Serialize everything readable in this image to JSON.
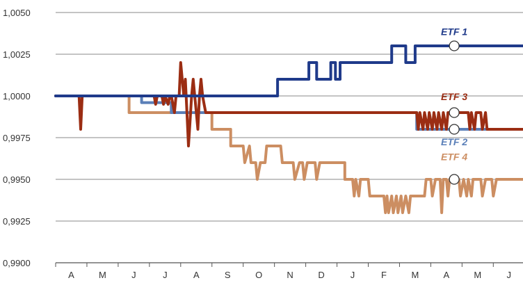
{
  "chart_data": {
    "type": "line",
    "title": "",
    "xlabel": "",
    "ylabel": "",
    "x_ticks": [
      "A",
      "M",
      "J",
      "J",
      "A",
      "S",
      "O",
      "N",
      "D",
      "J",
      "F",
      "M",
      "A",
      "M",
      "J"
    ],
    "y_ticks": [
      "1,0050",
      "1,0025",
      "1,0000",
      "0,9975",
      "0,9950",
      "0,9925",
      "0,9900"
    ],
    "ylim": [
      0.99,
      1.005
    ],
    "xlim": [
      0,
      14.95
    ],
    "grid": true,
    "legend": "inline labels at right",
    "series": [
      {
        "name": "ETF 1",
        "color": "#1f3a8a",
        "points": [
          [
            0,
            1.0
          ],
          [
            7.1,
            1.0
          ],
          [
            7.1,
            1.001
          ],
          [
            8.1,
            1.001
          ],
          [
            8.1,
            1.002
          ],
          [
            8.35,
            1.002
          ],
          [
            8.35,
            1.001
          ],
          [
            8.8,
            1.001
          ],
          [
            8.8,
            1.002
          ],
          [
            8.95,
            1.002
          ],
          [
            8.95,
            1.001
          ],
          [
            9.1,
            1.001
          ],
          [
            9.1,
            1.002
          ],
          [
            10.75,
            1.002
          ],
          [
            10.75,
            1.003
          ],
          [
            11.2,
            1.003
          ],
          [
            11.2,
            1.002
          ],
          [
            11.5,
            1.002
          ],
          [
            11.5,
            1.003
          ],
          [
            14.95,
            1.003
          ]
        ],
        "marker": [
          12.75,
          1.003
        ]
      },
      {
        "name": "ETF 3",
        "color": "#9b2d13",
        "points": [
          [
            0,
            1.0
          ],
          [
            0.75,
            1.0
          ],
          [
            0.8,
            0.998
          ],
          [
            0.85,
            1.0
          ],
          [
            3.15,
            1.0
          ],
          [
            3.2,
            0.9995
          ],
          [
            3.25,
            1.0
          ],
          [
            3.4,
            1.0
          ],
          [
            3.45,
            0.9995
          ],
          [
            3.5,
            1.0
          ],
          [
            3.6,
            0.9995
          ],
          [
            3.65,
            1.0
          ],
          [
            3.7,
            1.0
          ],
          [
            3.75,
            0.9995
          ],
          [
            3.8,
            0.999
          ],
          [
            3.85,
            1.0
          ],
          [
            3.95,
            1.0
          ],
          [
            4.0,
            1.002
          ],
          [
            4.05,
            1.001
          ],
          [
            4.1,
            1.0
          ],
          [
            4.15,
            1.001
          ],
          [
            4.2,
            0.999
          ],
          [
            4.25,
            0.997
          ],
          [
            4.3,
            0.9985
          ],
          [
            4.35,
            1.0
          ],
          [
            4.4,
            1.001
          ],
          [
            4.45,
            1.0
          ],
          [
            4.5,
            0.999
          ],
          [
            4.55,
            0.998
          ],
          [
            4.6,
            1.0
          ],
          [
            4.65,
            1.001
          ],
          [
            4.7,
            1.0
          ],
          [
            4.75,
            0.9995
          ],
          [
            4.8,
            0.999
          ],
          [
            11.55,
            0.999
          ],
          [
            11.6,
            0.998
          ],
          [
            11.65,
            0.999
          ],
          [
            11.75,
            0.998
          ],
          [
            11.8,
            0.999
          ],
          [
            11.9,
            0.998
          ],
          [
            11.95,
            0.999
          ],
          [
            12.05,
            0.998
          ],
          [
            12.1,
            0.999
          ],
          [
            12.2,
            0.998
          ],
          [
            12.25,
            0.999
          ],
          [
            12.35,
            0.998
          ],
          [
            12.4,
            0.999
          ],
          [
            12.5,
            0.998
          ],
          [
            12.55,
            0.999
          ],
          [
            13.2,
            0.999
          ],
          [
            13.25,
            0.998
          ],
          [
            13.3,
            0.999
          ],
          [
            13.4,
            0.998
          ],
          [
            13.45,
            0.999
          ],
          [
            13.6,
            0.999
          ],
          [
            13.65,
            0.998
          ],
          [
            13.75,
            0.999
          ],
          [
            13.8,
            0.998
          ],
          [
            14.95,
            0.998
          ]
        ],
        "marker": [
          12.75,
          0.999
        ]
      },
      {
        "name": "ETF 2",
        "color": "#5a7fb8",
        "points": [
          [
            0,
            1.0
          ],
          [
            2.75,
            1.0
          ],
          [
            2.75,
            0.9996
          ],
          [
            3.7,
            0.9996
          ],
          [
            3.7,
            0.999
          ],
          [
            11.55,
            0.999
          ],
          [
            11.55,
            0.998
          ],
          [
            14.95,
            0.998
          ]
        ],
        "marker": [
          12.75,
          0.998
        ]
      },
      {
        "name": "ETF 4",
        "color": "#cc8e62",
        "points": [
          [
            0,
            1.0
          ],
          [
            2.35,
            1.0
          ],
          [
            2.35,
            0.999
          ],
          [
            5.0,
            0.999
          ],
          [
            5.0,
            0.998
          ],
          [
            5.6,
            0.998
          ],
          [
            5.6,
            0.997
          ],
          [
            6.0,
            0.997
          ],
          [
            6.05,
            0.996
          ],
          [
            6.2,
            0.997
          ],
          [
            6.25,
            0.996
          ],
          [
            6.4,
            0.996
          ],
          [
            6.45,
            0.995
          ],
          [
            6.55,
            0.996
          ],
          [
            6.7,
            0.996
          ],
          [
            6.75,
            0.997
          ],
          [
            7.2,
            0.997
          ],
          [
            7.25,
            0.996
          ],
          [
            7.6,
            0.996
          ],
          [
            7.65,
            0.995
          ],
          [
            7.8,
            0.996
          ],
          [
            7.9,
            0.996
          ],
          [
            7.95,
            0.995
          ],
          [
            8.05,
            0.996
          ],
          [
            8.3,
            0.996
          ],
          [
            8.35,
            0.995
          ],
          [
            8.45,
            0.996
          ],
          [
            9.25,
            0.996
          ],
          [
            9.25,
            0.995
          ],
          [
            9.5,
            0.995
          ],
          [
            9.55,
            0.994
          ],
          [
            9.6,
            0.995
          ],
          [
            9.7,
            0.994
          ],
          [
            9.75,
            0.995
          ],
          [
            10.0,
            0.995
          ],
          [
            10.05,
            0.994
          ],
          [
            10.5,
            0.994
          ],
          [
            10.55,
            0.993
          ],
          [
            10.6,
            0.994
          ],
          [
            10.65,
            0.993
          ],
          [
            10.75,
            0.994
          ],
          [
            10.8,
            0.993
          ],
          [
            10.9,
            0.994
          ],
          [
            10.95,
            0.993
          ],
          [
            11.05,
            0.994
          ],
          [
            11.1,
            0.993
          ],
          [
            11.2,
            0.994
          ],
          [
            11.3,
            0.993
          ],
          [
            11.35,
            0.994
          ],
          [
            11.8,
            0.994
          ],
          [
            11.85,
            0.995
          ],
          [
            12.0,
            0.995
          ],
          [
            12.05,
            0.994
          ],
          [
            12.15,
            0.995
          ],
          [
            12.3,
            0.995
          ],
          [
            12.35,
            0.993
          ],
          [
            12.4,
            0.995
          ],
          [
            12.5,
            0.995
          ],
          [
            12.55,
            0.994
          ],
          [
            12.6,
            0.995
          ],
          [
            12.9,
            0.995
          ],
          [
            12.95,
            0.994
          ],
          [
            13.05,
            0.995
          ],
          [
            13.15,
            0.994
          ],
          [
            13.2,
            0.995
          ],
          [
            13.3,
            0.994
          ],
          [
            13.35,
            0.995
          ],
          [
            13.6,
            0.995
          ],
          [
            13.65,
            0.994
          ],
          [
            13.75,
            0.995
          ],
          [
            13.95,
            0.995
          ],
          [
            14.0,
            0.994
          ],
          [
            14.1,
            0.995
          ],
          [
            14.95,
            0.995
          ]
        ],
        "marker": [
          12.75,
          0.995
        ]
      }
    ],
    "series_labels": [
      {
        "text": "ETF 1",
        "color": "#1f3a8a",
        "x": 12.75,
        "y": 1.00365
      },
      {
        "text": "ETF 3",
        "color": "#9b2d13",
        "x": 12.75,
        "y": 0.99975
      },
      {
        "text": "ETF 2",
        "color": "#5a7fb8",
        "x": 12.75,
        "y": 0.99705
      },
      {
        "text": "ETF 4",
        "color": "#cc8e62",
        "x": 12.75,
        "y": 0.99615
      }
    ]
  }
}
